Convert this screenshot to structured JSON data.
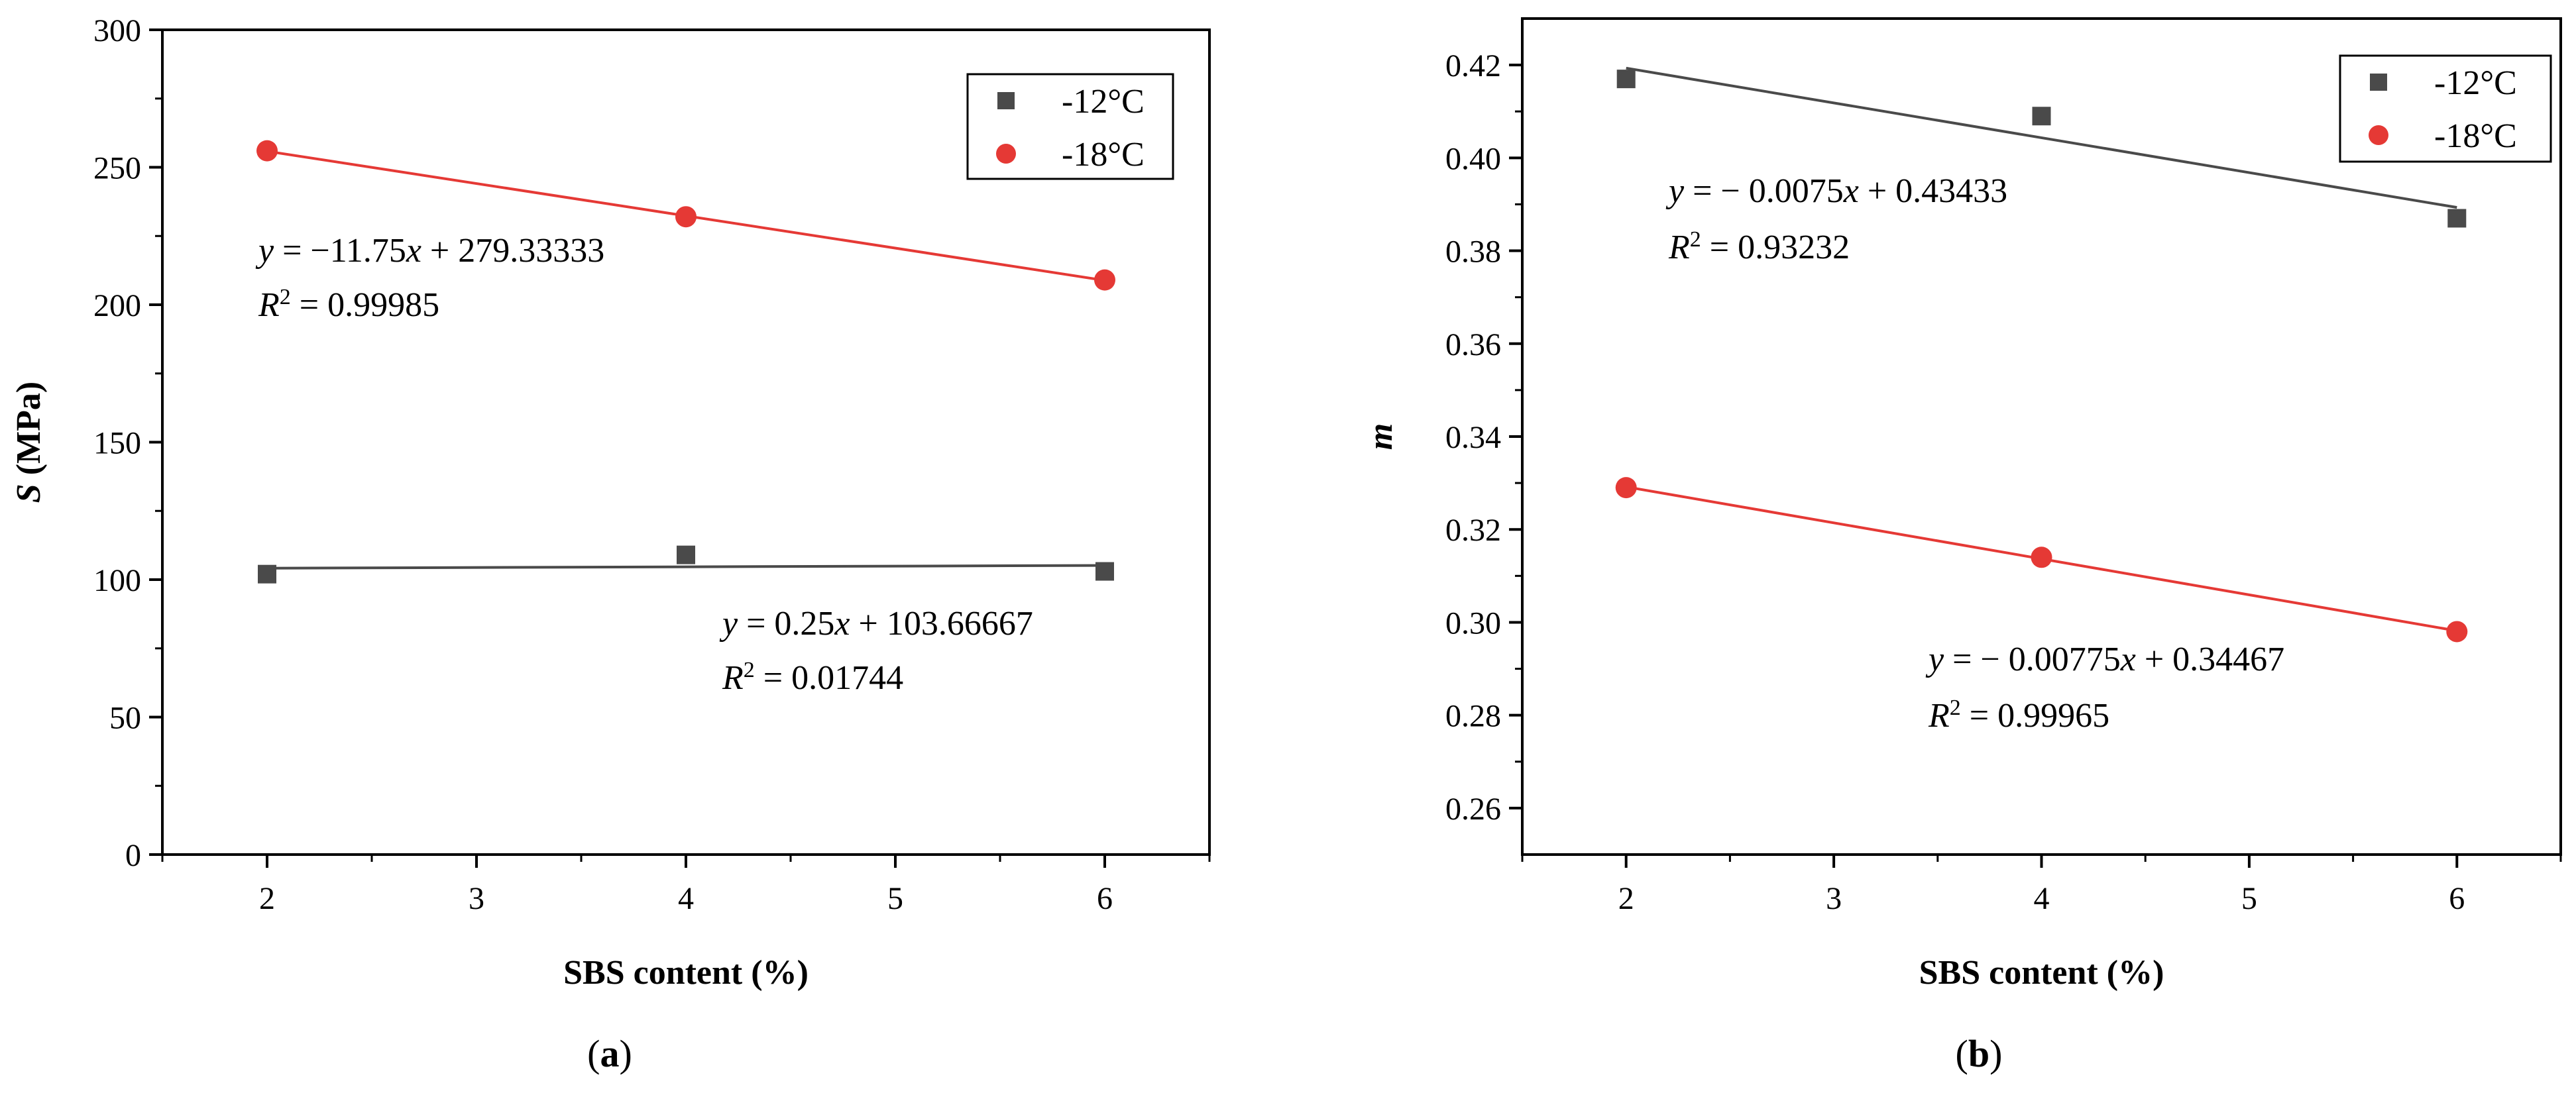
{
  "chart_data": [
    {
      "type": "scatter",
      "panel": "(a)",
      "panel_open": "(",
      "panel_letter": "a",
      "panel_close": ")",
      "title": "",
      "xlabel": "SBS content (%)",
      "ylabel_var": "S",
      "ylabel_unit": " (MPa)",
      "xlim": [
        1.5,
        6.5
      ],
      "ylim": [
        0,
        300
      ],
      "xticks": [
        2,
        3,
        4,
        5,
        6
      ],
      "yticks": [
        0,
        50,
        100,
        150,
        200,
        250,
        300
      ],
      "legend_position": "top-right",
      "series": [
        {
          "name": "-12°C",
          "marker": "square",
          "color": "#4a4a4a",
          "x": [
            2,
            4,
            6
          ],
          "y": [
            102,
            109,
            103
          ],
          "fit": {
            "slope": 0.25,
            "intercept": 103.66667
          },
          "equation": {
            "y": "y",
            "rest": " = 0.25",
            "x": "x",
            "tail": " + 103.66667"
          },
          "r2": {
            "r": "R",
            "sup": "2",
            "value": " = 0.01744"
          }
        },
        {
          "name": "-18°C",
          "marker": "circle",
          "color": "#e53935",
          "x": [
            2,
            4,
            6
          ],
          "y": [
            256,
            232,
            209
          ],
          "fit": {
            "slope": -11.75,
            "intercept": 279.33333
          },
          "equation": {
            "y": "y",
            "rest": " = −11.75",
            "x": "x",
            "tail": " + 279.33333"
          },
          "r2": {
            "r": "R",
            "sup": "2",
            "value": " = 0.99985"
          }
        }
      ]
    },
    {
      "type": "scatter",
      "panel": "(b)",
      "panel_open": "(",
      "panel_letter": "b",
      "panel_close": ")",
      "title": "",
      "xlabel": "SBS content (%)",
      "ylabel_var": "m",
      "ylabel_unit": "",
      "xlim": [
        1.5,
        6.5
      ],
      "ylim": [
        0.25,
        0.43
      ],
      "xticks": [
        2,
        3,
        4,
        5,
        6
      ],
      "yticks": [
        0.26,
        0.28,
        0.3,
        0.32,
        0.34,
        0.36,
        0.38,
        0.4,
        0.42
      ],
      "ytick_labels": [
        "0.26",
        "0.28",
        "0.30",
        "0.32",
        "0.34",
        "0.36",
        "0.38",
        "0.40",
        "0.42"
      ],
      "legend_position": "top-right",
      "series": [
        {
          "name": "-12°C",
          "marker": "square",
          "color": "#4a4a4a",
          "x": [
            2,
            4,
            6
          ],
          "y": [
            0.417,
            0.409,
            0.387
          ],
          "fit": {
            "slope": -0.0075,
            "intercept": 0.43433
          },
          "equation": {
            "y": "y",
            "rest": " = − 0.0075",
            "x": "x",
            "tail": " + 0.43433"
          },
          "r2": {
            "r": "R",
            "sup": "2",
            "value": " = 0.93232"
          }
        },
        {
          "name": "-18°C",
          "marker": "circle",
          "color": "#e53935",
          "x": [
            2,
            4,
            6
          ],
          "y": [
            0.329,
            0.314,
            0.298
          ],
          "fit": {
            "slope": -0.00775,
            "intercept": 0.34467
          },
          "equation": {
            "y": "y",
            "rest": " = − 0.00775",
            "x": "x",
            "tail": " + 0.34467"
          },
          "r2": {
            "r": "R",
            "sup": "2",
            "value": " = 0.99965"
          }
        }
      ]
    }
  ]
}
